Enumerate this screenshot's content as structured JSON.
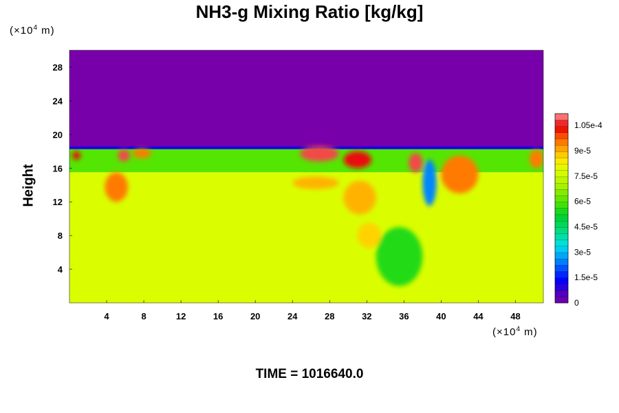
{
  "chart_data": {
    "type": "heatmap",
    "title": "NH3-g Mixing Ratio [kg/kg]",
    "ylabel": "Height",
    "x_unit": {
      "prefix": "(×10",
      "exp": "4",
      "suffix": " m)"
    },
    "y_unit": {
      "prefix": "(×10",
      "exp": "4",
      "suffix": " m)"
    },
    "xlim": [
      0,
      51
    ],
    "ylim": [
      0,
      30
    ],
    "x_ticks": [
      "4",
      "8",
      "12",
      "16",
      "20",
      "24",
      "28",
      "32",
      "36",
      "40",
      "44",
      "48"
    ],
    "y_ticks": [
      "4",
      "8",
      "12",
      "16",
      "20",
      "24",
      "28"
    ],
    "colorbar": {
      "min": 0,
      "max": 0.000112,
      "tick_labels": [
        "0",
        "1.5e-5",
        "3e-5",
        "4.5e-5",
        "6e-5",
        "7.5e-5",
        "9e-5",
        "1.05e-4"
      ],
      "tick_values": [
        0,
        1.5e-05,
        3e-05,
        4.5e-05,
        6e-05,
        7.5e-05,
        9e-05,
        0.000105
      ]
    },
    "regions": [
      {
        "name": "upper layer",
        "y_range": [
          18.5,
          30
        ],
        "value": 0
      },
      {
        "name": "mixed layer",
        "y_range": [
          15.5,
          18.5
        ],
        "value": 6e-05
      },
      {
        "name": "lower layer",
        "y_range": [
          0,
          15.5
        ],
        "value": 7.8e-05
      }
    ],
    "features": [
      {
        "x": [
          0.3,
          1.2
        ],
        "y": [
          17.0,
          18.0
        ],
        "value": 0.000105
      },
      {
        "x": [
          3.8,
          6.3
        ],
        "y": [
          12.0,
          15.5
        ],
        "value": 9.5e-05
      },
      {
        "x": [
          5.2,
          6.5
        ],
        "y": [
          16.8,
          18.2
        ],
        "value": 0.000108
      },
      {
        "x": [
          6.8,
          8.8
        ],
        "y": [
          17.2,
          18.3
        ],
        "value": 9.5e-05
      },
      {
        "x": [
          24.0,
          29.0
        ],
        "y": [
          13.5,
          15.0
        ],
        "value": 9e-05
      },
      {
        "x": [
          24.8,
          29.0
        ],
        "y": [
          16.8,
          18.6
        ],
        "value": 0.000108
      },
      {
        "x": [
          29.5,
          33.0
        ],
        "y": [
          10.5,
          14.5
        ],
        "value": 9e-05
      },
      {
        "x": [
          31.0,
          33.5
        ],
        "y": [
          6.5,
          9.5
        ],
        "value": 8.7e-05
      },
      {
        "x": [
          29.5,
          32.5
        ],
        "y": [
          16.0,
          18.0
        ],
        "value": 0.000105
      },
      {
        "x": [
          36.5,
          38.0
        ],
        "y": [
          15.5,
          17.8
        ],
        "value": 0.000108
      },
      {
        "x": [
          38.0,
          39.5
        ],
        "y": [
          11.5,
          17.0
        ],
        "value": 2.5e-05
      },
      {
        "x": [
          40.0,
          44.0
        ],
        "y": [
          13.0,
          17.5
        ],
        "value": 9.5e-05
      },
      {
        "x": [
          49.5,
          51.0
        ],
        "y": [
          16.0,
          18.2
        ],
        "value": 9.5e-05
      },
      {
        "x": [
          33.0,
          38.0
        ],
        "y": [
          2.0,
          9.0
        ],
        "value": 5.5e-05
      }
    ]
  },
  "time_label": "TIME = 1016640.0"
}
